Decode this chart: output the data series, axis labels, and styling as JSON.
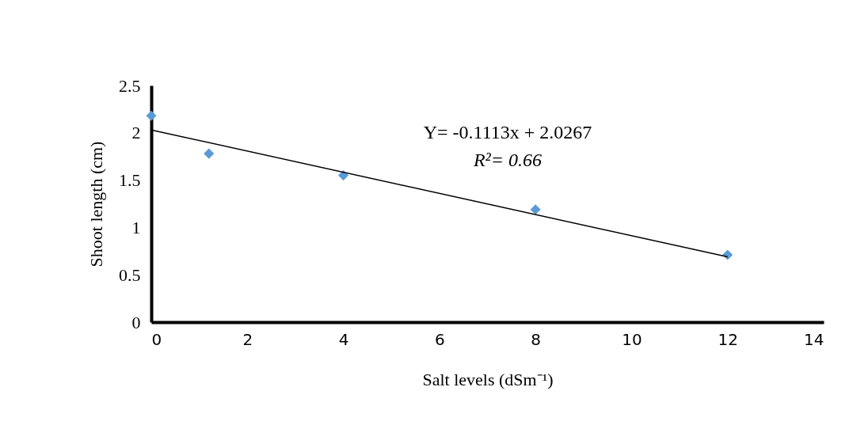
{
  "chart_data": {
    "type": "scatter",
    "xlabel": "Salt levels (dSm⁻¹)",
    "ylabel": "Shoot length  (cm)",
    "x": [
      0,
      1.2,
      4,
      8,
      12
    ],
    "grid": false,
    "series": [
      {
        "color": "#5b9bd5",
        "marker": "diamond",
        "values": [
          2.18,
          1.78,
          1.55,
          1.19,
          0.71
        ]
      },
      {
        "type": "line",
        "color": "#000000",
        "line_style": "solid",
        "x": [
          0,
          12
        ],
        "values": [
          2.03,
          0.69
        ]
      }
    ],
    "xlim": [
      0,
      14
    ],
    "xticks": [
      0,
      2,
      4,
      6,
      8,
      10,
      12,
      14
    ],
    "ylim": [
      0,
      2.5
    ],
    "yticks": [
      0,
      0.5,
      1,
      1.5,
      2,
      2.5
    ],
    "annotations": [
      "Y= -0.1113x + 2.0267",
      "R²= 0.66"
    ]
  }
}
